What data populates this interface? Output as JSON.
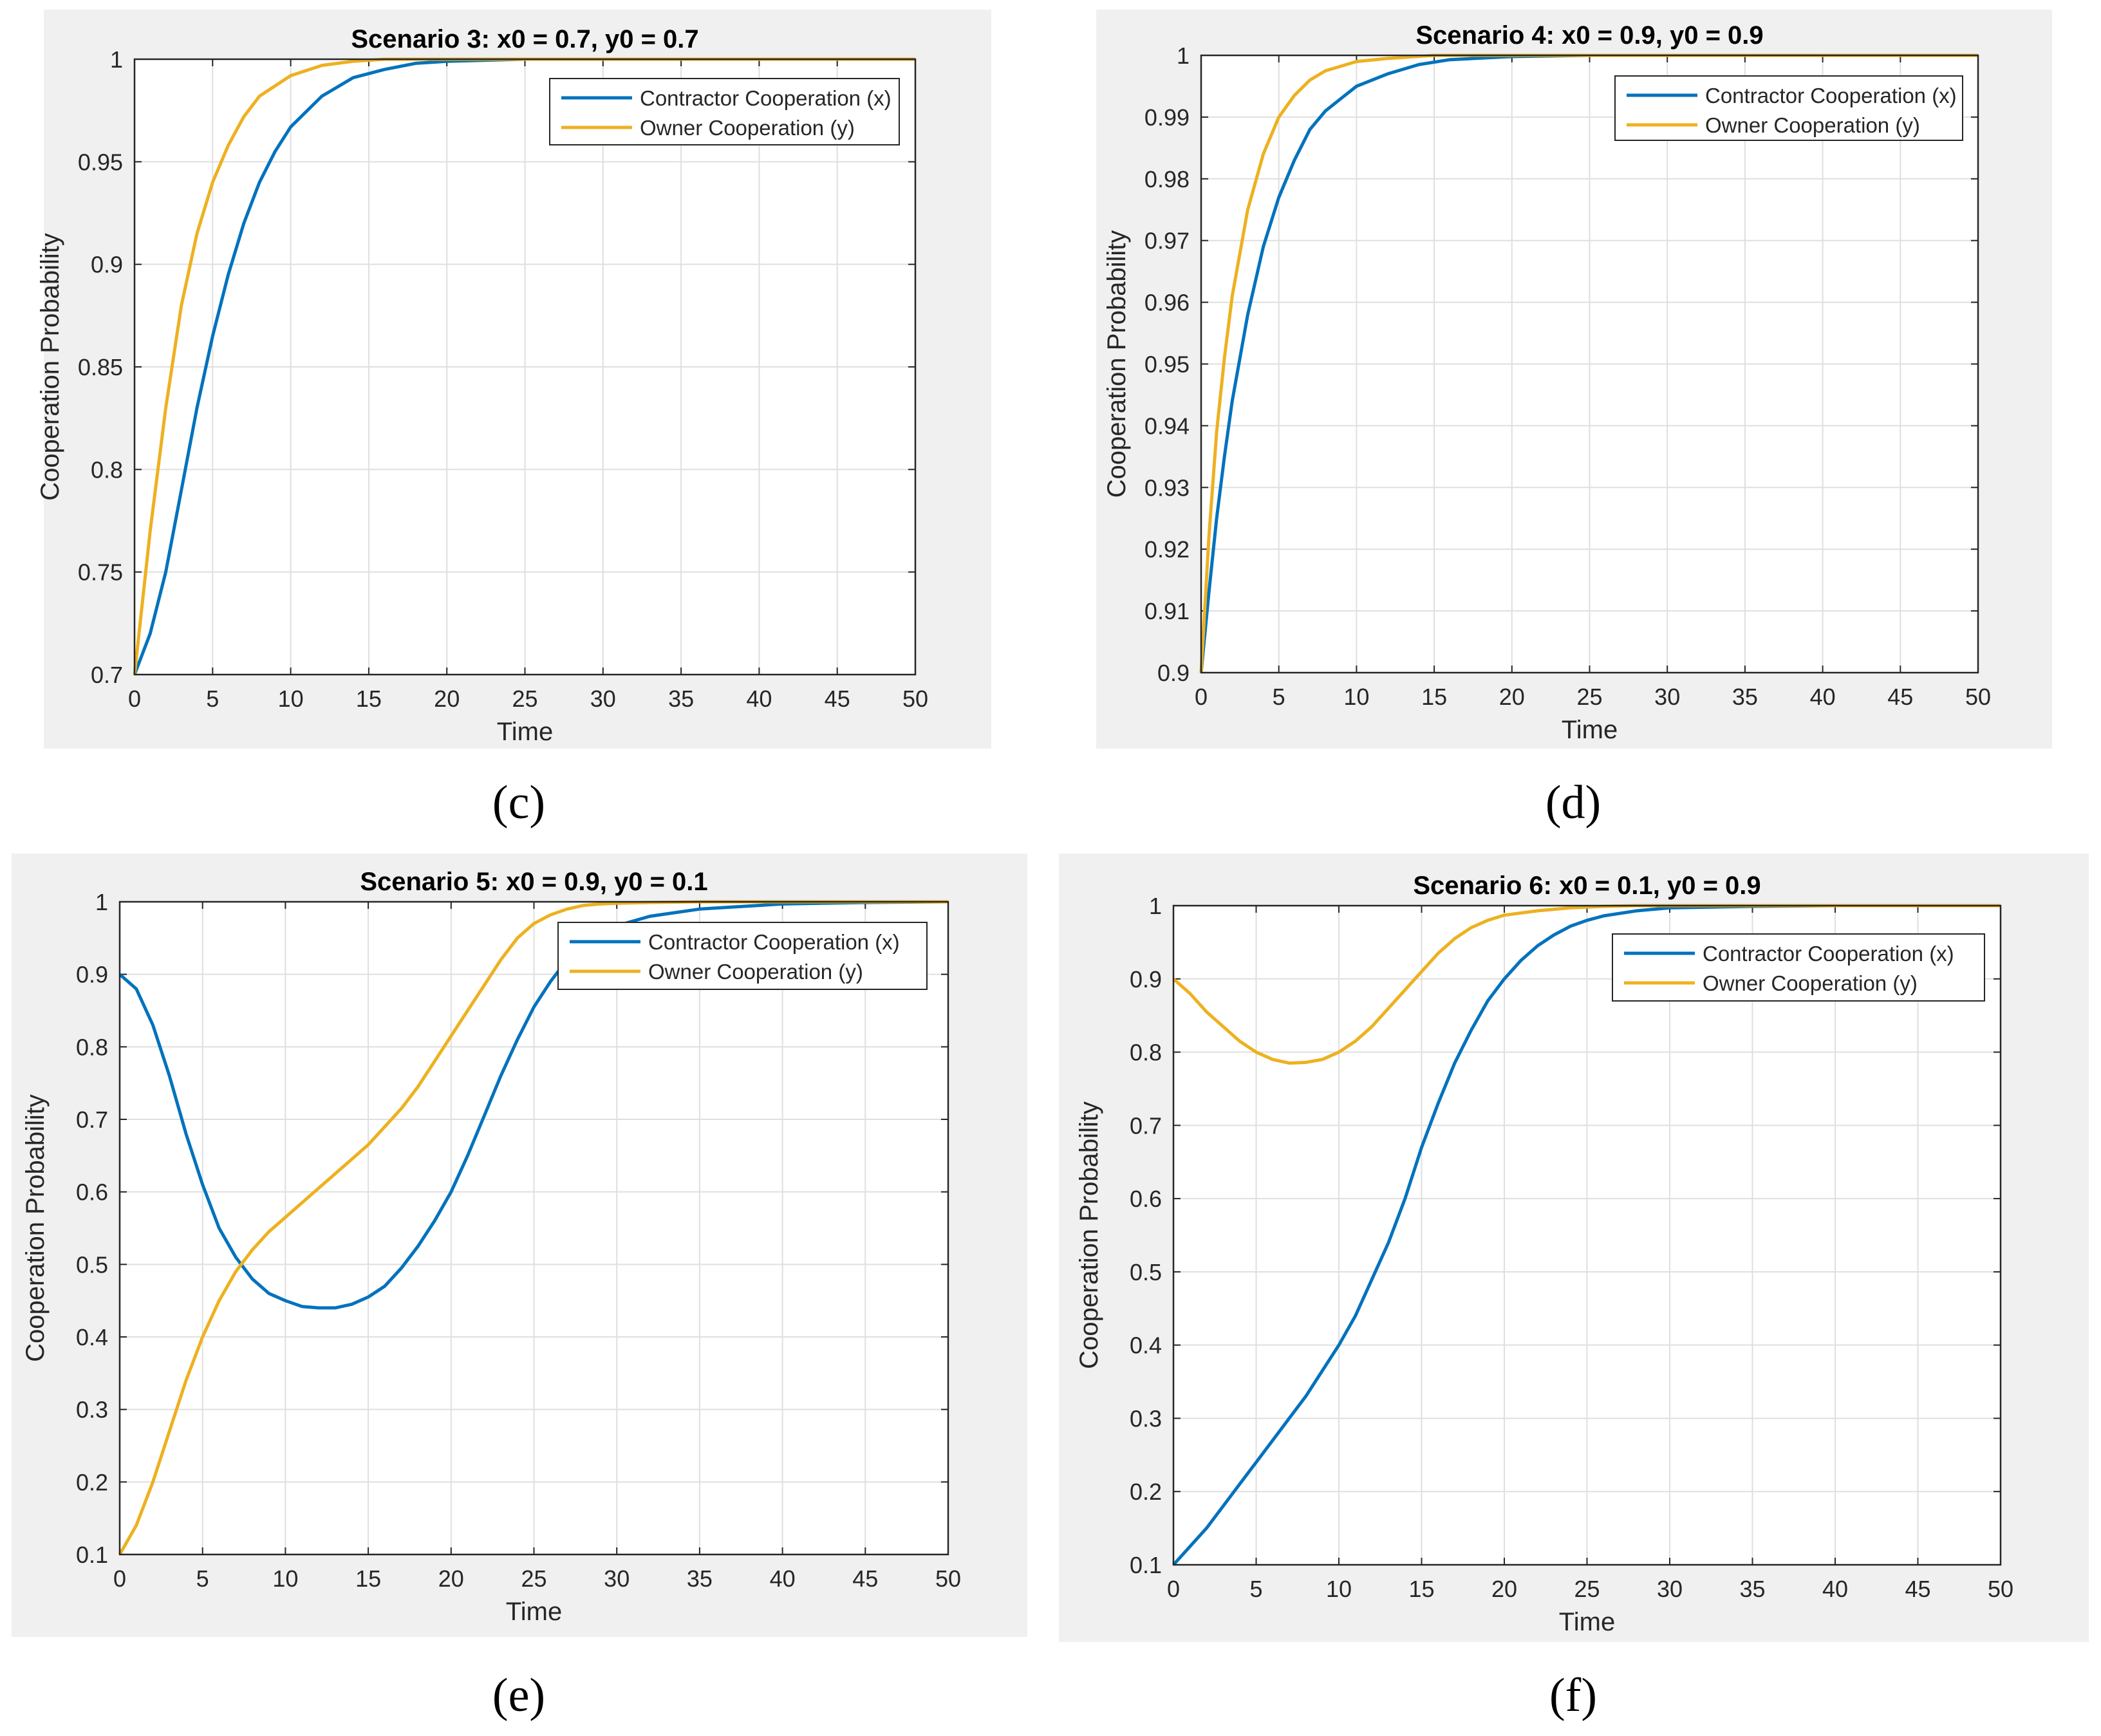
{
  "figure_labels": [
    "(c)",
    "(d)",
    "(e)",
    "(f)"
  ],
  "colors": {
    "contractor": "#0072BD",
    "owner": "#EDB120",
    "grid": "#dfdfdf",
    "panel_bg": "#f0f0f0"
  },
  "chart_data": [
    {
      "type": "line",
      "title": "Scenario 3: x0 = 0.7, y0 = 0.7",
      "xlabel": "Time",
      "ylabel": "Cooperation Probability",
      "xlim": [
        0,
        50
      ],
      "ylim": [
        0.7,
        1
      ],
      "xticks": [
        0,
        5,
        10,
        15,
        20,
        25,
        30,
        35,
        40,
        45,
        50
      ],
      "xtick_labels": [
        "0",
        "5",
        "10",
        "15",
        "20",
        "25",
        "30",
        "35",
        "40",
        "45",
        "50"
      ],
      "yticks": [
        0.7,
        0.75,
        0.8,
        0.85,
        0.9,
        0.95,
        1
      ],
      "ytick_labels": [
        "0.7",
        "0.75",
        "0.8",
        "0.85",
        "0.9",
        "0.95",
        "1"
      ],
      "grid": true,
      "legend_position": "top-right",
      "series": [
        {
          "name": "Contractor Cooperation (x)",
          "x": [
            0,
            1,
            2,
            3,
            4,
            5,
            6,
            7,
            8,
            9,
            10,
            12,
            14,
            16,
            18,
            20,
            25,
            30,
            40,
            50
          ],
          "values": [
            0.7,
            0.72,
            0.75,
            0.79,
            0.83,
            0.865,
            0.895,
            0.92,
            0.94,
            0.955,
            0.967,
            0.982,
            0.991,
            0.995,
            0.998,
            0.999,
            1,
            1,
            1,
            1
          ]
        },
        {
          "name": "Owner Cooperation (y)",
          "x": [
            0,
            1,
            2,
            3,
            4,
            5,
            6,
            7,
            8,
            10,
            12,
            14,
            16,
            20,
            25,
            30,
            40,
            50
          ],
          "values": [
            0.7,
            0.77,
            0.83,
            0.88,
            0.915,
            0.94,
            0.958,
            0.972,
            0.982,
            0.992,
            0.997,
            0.999,
            1,
            1,
            1,
            1,
            1,
            1
          ]
        }
      ]
    },
    {
      "type": "line",
      "title": "Scenario 4: x0 = 0.9, y0 = 0.9",
      "xlabel": "Time",
      "ylabel": "Cooperation Probability",
      "xlim": [
        0,
        50
      ],
      "ylim": [
        0.9,
        1
      ],
      "xticks": [
        0,
        5,
        10,
        15,
        20,
        25,
        30,
        35,
        40,
        45,
        50
      ],
      "xtick_labels": [
        "0",
        "5",
        "10",
        "15",
        "20",
        "25",
        "30",
        "35",
        "40",
        "45",
        "50"
      ],
      "yticks": [
        0.9,
        0.91,
        0.92,
        0.93,
        0.94,
        0.95,
        0.96,
        0.97,
        0.98,
        0.99,
        1
      ],
      "ytick_labels": [
        "0.9",
        "0.91",
        "0.92",
        "0.93",
        "0.94",
        "0.95",
        "0.96",
        "0.97",
        "0.98",
        "0.99",
        "1"
      ],
      "grid": true,
      "legend_position": "top-right",
      "series": [
        {
          "name": "Contractor Cooperation (x)",
          "x": [
            0,
            0.5,
            1,
            1.5,
            2,
            3,
            4,
            5,
            6,
            7,
            8,
            9,
            10,
            12,
            14,
            16,
            20,
            25,
            30,
            40,
            50
          ],
          "values": [
            0.9,
            0.913,
            0.925,
            0.935,
            0.944,
            0.958,
            0.969,
            0.977,
            0.983,
            0.988,
            0.991,
            0.993,
            0.995,
            0.997,
            0.9985,
            0.9993,
            0.9998,
            1,
            1,
            1,
            1
          ]
        },
        {
          "name": "Owner Cooperation (y)",
          "x": [
            0,
            0.5,
            1,
            1.5,
            2,
            3,
            4,
            5,
            6,
            7,
            8,
            10,
            12,
            15,
            20,
            25,
            30,
            40,
            50
          ],
          "values": [
            0.9,
            0.922,
            0.939,
            0.951,
            0.961,
            0.975,
            0.984,
            0.99,
            0.9935,
            0.996,
            0.9975,
            0.999,
            0.9995,
            1,
            1,
            1,
            1,
            1,
            1
          ]
        }
      ]
    },
    {
      "type": "line",
      "title": "Scenario 5: x0 = 0.9, y0 = 0.1",
      "xlabel": "Time",
      "ylabel": "Cooperation Probability",
      "xlim": [
        0,
        50
      ],
      "ylim": [
        0.1,
        1
      ],
      "xticks": [
        0,
        5,
        10,
        15,
        20,
        25,
        30,
        35,
        40,
        45,
        50
      ],
      "xtick_labels": [
        "0",
        "5",
        "10",
        "15",
        "20",
        "25",
        "30",
        "35",
        "40",
        "45",
        "50"
      ],
      "yticks": [
        0.1,
        0.2,
        0.3,
        0.4,
        0.5,
        0.6,
        0.7,
        0.8,
        0.9,
        1
      ],
      "ytick_labels": [
        "0.1",
        "0.2",
        "0.3",
        "0.4",
        "0.5",
        "0.6",
        "0.7",
        "0.8",
        "0.9",
        "1"
      ],
      "grid": true,
      "legend_position": "top-right",
      "series": [
        {
          "name": "Contractor Cooperation (x)",
          "x": [
            0,
            1,
            2,
            3,
            4,
            5,
            6,
            7,
            8,
            9,
            10,
            11,
            12,
            13,
            14,
            15,
            16,
            17,
            18,
            19,
            20,
            21,
            22,
            23,
            24,
            25,
            26,
            27,
            28,
            29,
            30,
            32,
            35,
            40,
            45,
            50
          ],
          "values": [
            0.9,
            0.88,
            0.83,
            0.76,
            0.68,
            0.61,
            0.55,
            0.51,
            0.48,
            0.46,
            0.45,
            0.442,
            0.44,
            0.44,
            0.445,
            0.455,
            0.47,
            0.495,
            0.525,
            0.56,
            0.6,
            0.65,
            0.705,
            0.76,
            0.81,
            0.855,
            0.89,
            0.92,
            0.94,
            0.955,
            0.967,
            0.98,
            0.99,
            0.997,
            0.999,
            1
          ]
        },
        {
          "name": "Owner Cooperation (y)",
          "x": [
            0,
            1,
            2,
            3,
            4,
            5,
            6,
            7,
            8,
            9,
            10,
            11,
            12,
            13,
            14,
            15,
            16,
            17,
            18,
            19,
            20,
            21,
            22,
            23,
            24,
            25,
            26,
            27,
            28,
            29,
            30,
            32,
            35,
            40,
            45,
            50
          ],
          "values": [
            0.1,
            0.14,
            0.2,
            0.27,
            0.34,
            0.4,
            0.45,
            0.49,
            0.52,
            0.545,
            0.565,
            0.585,
            0.605,
            0.625,
            0.645,
            0.665,
            0.69,
            0.715,
            0.745,
            0.78,
            0.815,
            0.85,
            0.885,
            0.92,
            0.95,
            0.97,
            0.982,
            0.99,
            0.995,
            0.997,
            0.998,
            0.999,
            1,
            1,
            1,
            1
          ]
        }
      ]
    },
    {
      "type": "line",
      "title": "Scenario 6: x0 = 0.1, y0 = 0.9",
      "xlabel": "Time",
      "ylabel": "Cooperation Probability",
      "xlim": [
        0,
        50
      ],
      "ylim": [
        0.1,
        1
      ],
      "xticks": [
        0,
        5,
        10,
        15,
        20,
        25,
        30,
        35,
        40,
        45,
        50
      ],
      "xtick_labels": [
        "0",
        "5",
        "10",
        "15",
        "20",
        "25",
        "30",
        "35",
        "40",
        "45",
        "50"
      ],
      "yticks": [
        0.1,
        0.2,
        0.3,
        0.4,
        0.5,
        0.6,
        0.7,
        0.8,
        0.9,
        1
      ],
      "ytick_labels": [
        "0.1",
        "0.2",
        "0.3",
        "0.4",
        "0.5",
        "0.6",
        "0.7",
        "0.8",
        "0.9",
        "1"
      ],
      "grid": true,
      "legend_position": "top-right",
      "series": [
        {
          "name": "Contractor Cooperation (x)",
          "x": [
            0,
            1,
            2,
            3,
            4,
            5,
            6,
            7,
            8,
            9,
            10,
            11,
            12,
            13,
            14,
            15,
            16,
            17,
            18,
            19,
            20,
            21,
            22,
            23,
            24,
            25,
            26,
            28,
            30,
            35,
            40,
            50
          ],
          "values": [
            0.1,
            0.125,
            0.15,
            0.18,
            0.21,
            0.24,
            0.27,
            0.3,
            0.33,
            0.365,
            0.4,
            0.44,
            0.49,
            0.54,
            0.6,
            0.67,
            0.73,
            0.785,
            0.83,
            0.87,
            0.9,
            0.925,
            0.945,
            0.96,
            0.972,
            0.98,
            0.986,
            0.993,
            0.997,
            0.999,
            1,
            1
          ]
        },
        {
          "name": "Owner Cooperation (y)",
          "x": [
            0,
            1,
            2,
            3,
            4,
            5,
            6,
            7,
            8,
            9,
            10,
            11,
            12,
            13,
            14,
            15,
            16,
            17,
            18,
            19,
            20,
            22,
            24,
            26,
            28,
            30,
            35,
            40,
            50
          ],
          "values": [
            0.9,
            0.88,
            0.855,
            0.835,
            0.815,
            0.8,
            0.79,
            0.785,
            0.786,
            0.79,
            0.8,
            0.815,
            0.835,
            0.86,
            0.885,
            0.91,
            0.935,
            0.955,
            0.97,
            0.98,
            0.987,
            0.993,
            0.997,
            0.999,
            1,
            1,
            1,
            1,
            1
          ]
        }
      ]
    }
  ]
}
